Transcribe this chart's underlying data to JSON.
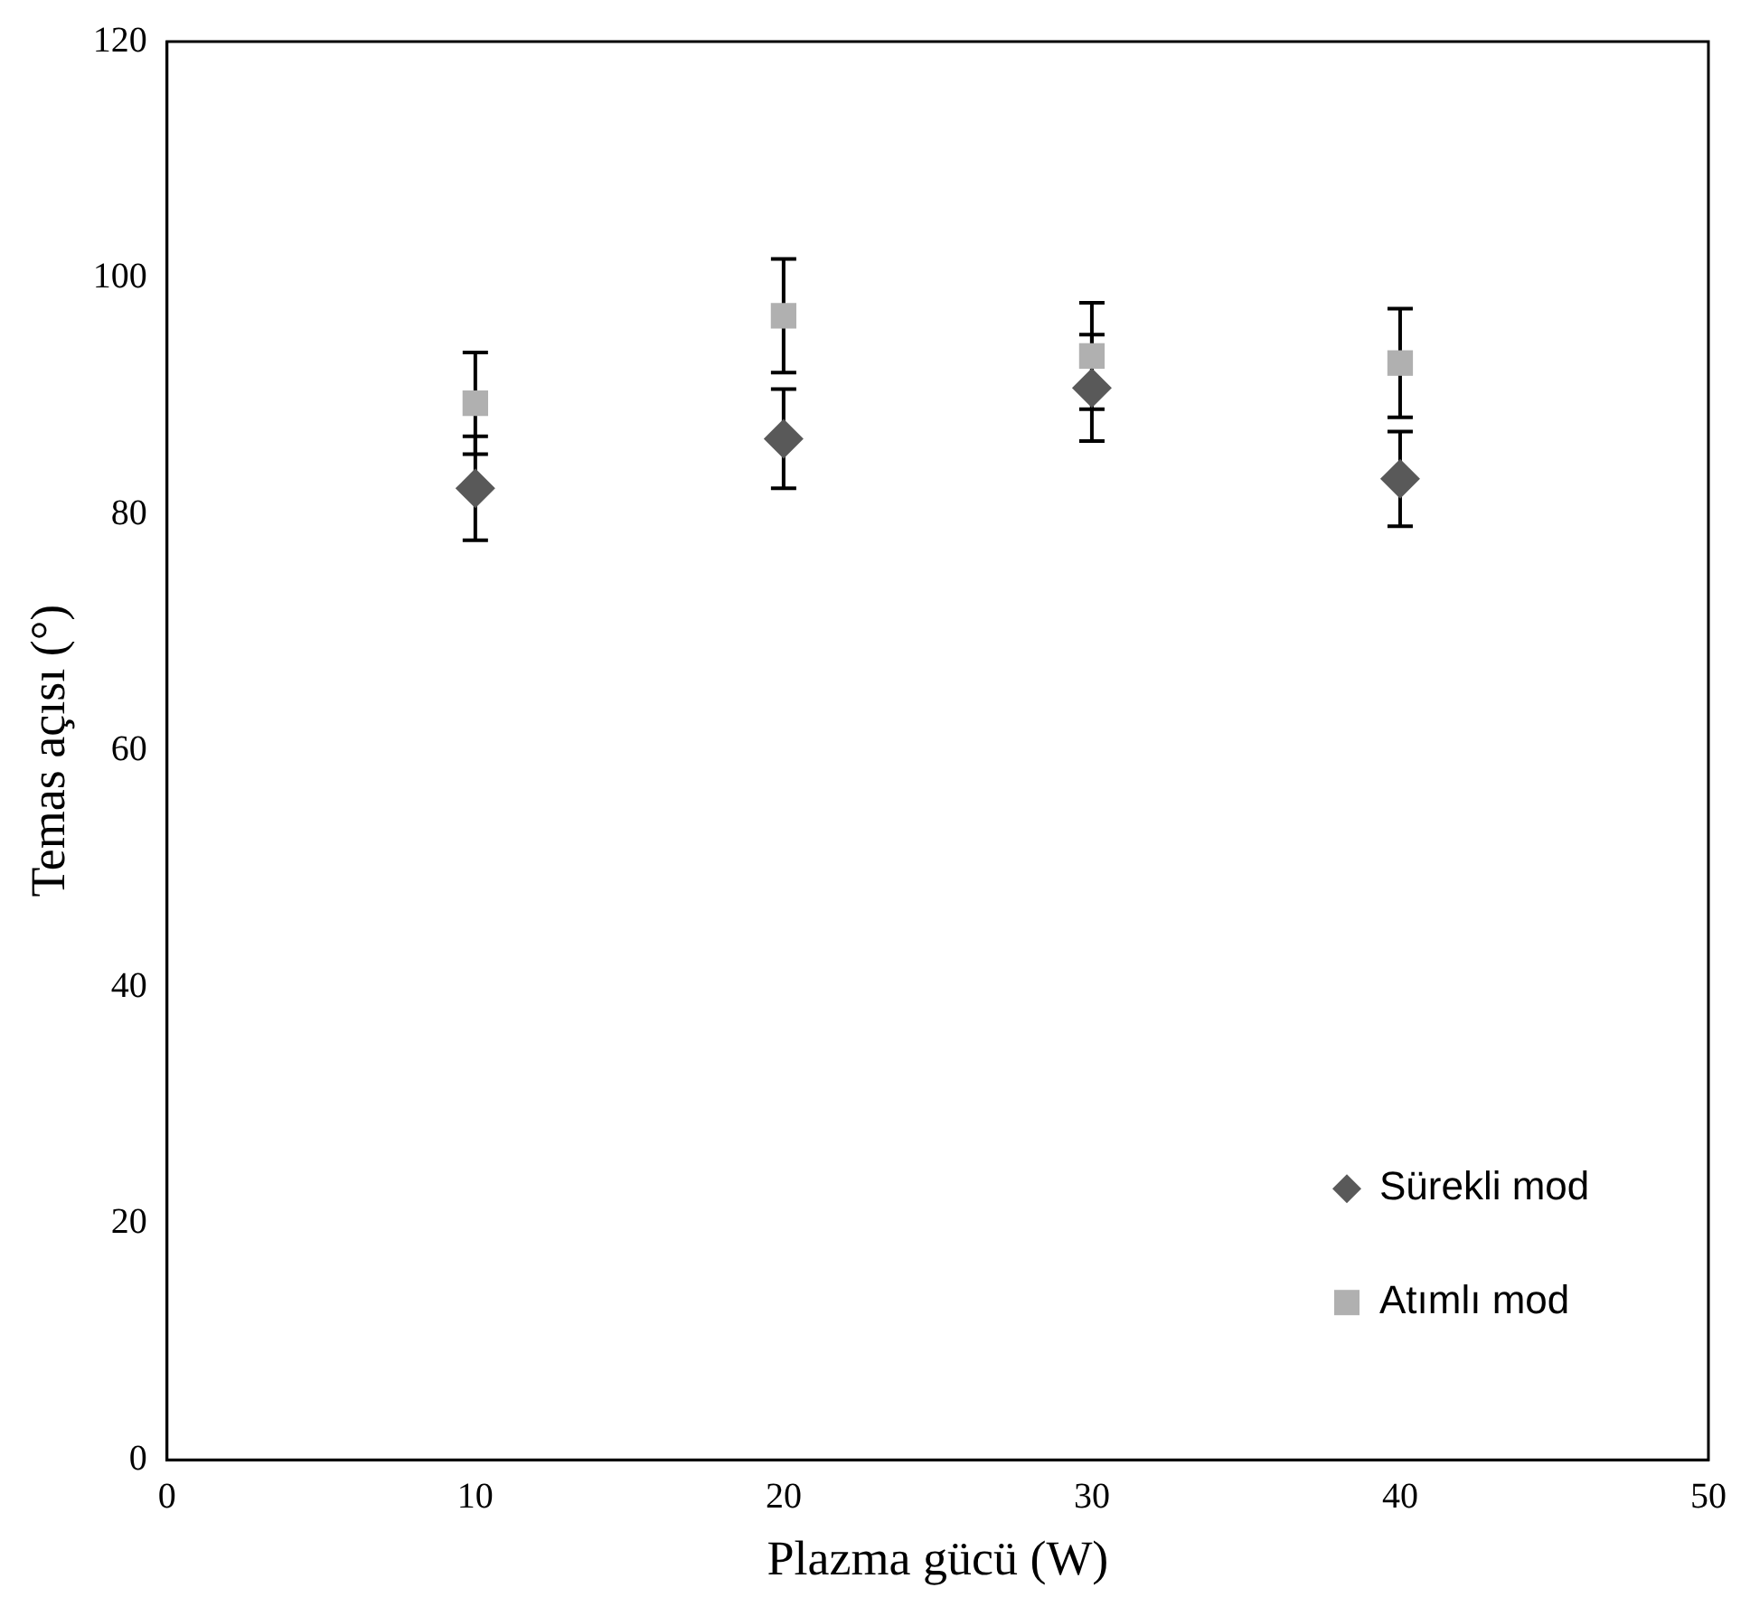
{
  "chart_data": {
    "type": "scatter",
    "xlabel": "Plazma gücü (W)",
    "ylabel": "Temas açısı (°)",
    "x": [
      10,
      20,
      30,
      40
    ],
    "series": [
      {
        "name": "Sürekli mod",
        "color": "#595959",
        "marker": "diamond",
        "values": [
          82.2,
          86.4,
          90.7,
          83.0
        ],
        "errors": [
          4.4,
          4.2,
          4.5,
          4.0
        ]
      },
      {
        "name": "Atımlı mod",
        "color": "#b0b0b0",
        "marker": "square",
        "values": [
          89.4,
          96.8,
          93.4,
          92.8
        ],
        "errors": [
          4.3,
          4.8,
          4.5,
          4.6
        ]
      }
    ],
    "xlim": [
      0,
      50
    ],
    "xticks": [
      0,
      10,
      20,
      30,
      40,
      50
    ],
    "ylim": [
      0,
      120
    ],
    "yticks": [
      0,
      20,
      40,
      60,
      80,
      100,
      120
    ],
    "grid": false,
    "legend": "bottom right"
  }
}
